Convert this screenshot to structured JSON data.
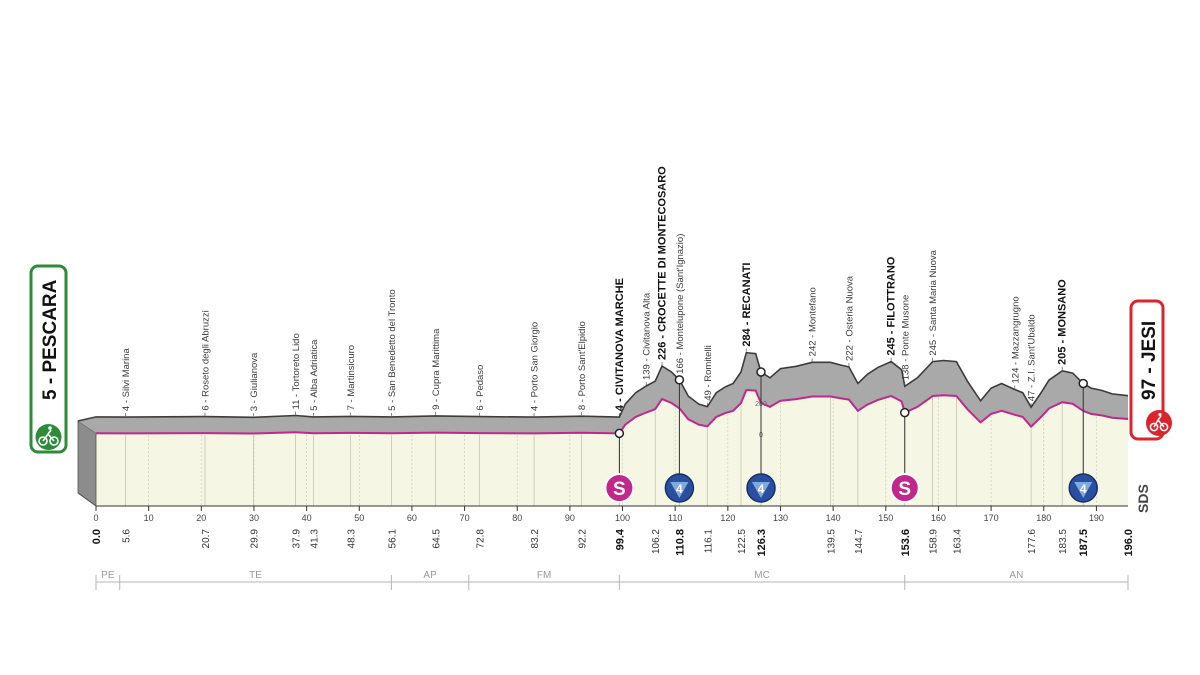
{
  "colors": {
    "start_badge": "#2e8b3a",
    "finish_badge": "#d9252b",
    "profile_fill": "#a9a9a9",
    "profile_side": "#8c8c8c",
    "base_fill": "#f5f6e3",
    "pink_line": "#c0288c",
    "sprint": "#c0288c",
    "kom": "#2b4fa0"
  },
  "start": {
    "label": "5 - PESCARA",
    "icon": "cyclist-icon"
  },
  "finish": {
    "label": "97 - JESI",
    "icon": "finish-flag-icon"
  },
  "credit": "SDS",
  "chart_data": {
    "type": "area",
    "title": "",
    "xlabel": "",
    "ylabel": "",
    "xlim": [
      0,
      196
    ],
    "x_ticks": [
      0,
      10,
      20,
      30,
      40,
      50,
      60,
      70,
      80,
      90,
      100,
      110,
      120,
      130,
      140,
      150,
      160,
      170,
      180,
      190
    ],
    "y_markers": [
      {
        "value": 0,
        "label": "0"
      },
      {
        "value": 200,
        "label": "200"
      }
    ],
    "profile": [
      [
        0,
        5
      ],
      [
        5.6,
        4
      ],
      [
        20.7,
        6
      ],
      [
        29.9,
        3
      ],
      [
        37.9,
        11
      ],
      [
        41.3,
        5
      ],
      [
        48.3,
        7
      ],
      [
        56.1,
        5
      ],
      [
        64.5,
        9
      ],
      [
        72.8,
        6
      ],
      [
        83.2,
        4
      ],
      [
        92.2,
        8
      ],
      [
        99.4,
        4
      ],
      [
        100.5,
        60
      ],
      [
        102.5,
        110
      ],
      [
        104.5,
        139
      ],
      [
        106.2,
        160
      ],
      [
        107.5,
        226
      ],
      [
        109.3,
        200
      ],
      [
        110.8,
        166
      ],
      [
        112.5,
        95
      ],
      [
        114.5,
        60
      ],
      [
        116.1,
        49
      ],
      [
        117.8,
        110
      ],
      [
        119.5,
        135
      ],
      [
        121,
        150
      ],
      [
        122.5,
        200
      ],
      [
        123.5,
        284
      ],
      [
        125.3,
        280
      ],
      [
        126.3,
        200
      ],
      [
        128,
        175
      ],
      [
        130,
        215
      ],
      [
        133,
        225
      ],
      [
        136,
        242
      ],
      [
        139.5,
        242
      ],
      [
        141.5,
        230
      ],
      [
        143,
        222
      ],
      [
        144.7,
        150
      ],
      [
        146.5,
        190
      ],
      [
        148.5,
        220
      ],
      [
        151,
        245
      ],
      [
        153,
        210
      ],
      [
        153.6,
        138
      ],
      [
        156,
        175
      ],
      [
        158.9,
        245
      ],
      [
        161,
        250
      ],
      [
        163.4,
        245
      ],
      [
        165.5,
        160
      ],
      [
        168,
        75
      ],
      [
        170,
        130
      ],
      [
        172,
        150
      ],
      [
        174.5,
        124
      ],
      [
        176,
        110
      ],
      [
        177.6,
        47
      ],
      [
        179.5,
        110
      ],
      [
        181,
        165
      ],
      [
        183.5,
        205
      ],
      [
        185.5,
        195
      ],
      [
        187.5,
        150
      ],
      [
        189,
        130
      ],
      [
        191,
        120
      ],
      [
        193,
        105
      ],
      [
        196,
        97
      ]
    ],
    "locations": [
      {
        "km": 5.6,
        "alt": 4,
        "label": "4 - Silvi Marina",
        "bold": false
      },
      {
        "km": 20.7,
        "alt": 6,
        "label": "6 - Roseto degli Abruzzi",
        "bold": false
      },
      {
        "km": 29.9,
        "alt": 3,
        "label": "3 - Giulianova",
        "bold": false
      },
      {
        "km": 37.9,
        "alt": 11,
        "label": "11 - Tortoreto Lido",
        "bold": false
      },
      {
        "km": 41.3,
        "alt": 5,
        "label": "5 - Alba Adriatica",
        "bold": false
      },
      {
        "km": 48.3,
        "alt": 7,
        "label": "7 - Martinsicuro",
        "bold": false
      },
      {
        "km": 56.1,
        "alt": 5,
        "label": "5 - San Benedetto del Tronto",
        "bold": false
      },
      {
        "km": 64.5,
        "alt": 9,
        "label": "9 - Cupra Marittima",
        "bold": false
      },
      {
        "km": 72.8,
        "alt": 6,
        "label": "6 - Pedaso",
        "bold": false
      },
      {
        "km": 83.2,
        "alt": 4,
        "label": "4 - Porto San Giorgio",
        "bold": false
      },
      {
        "km": 92.2,
        "alt": 8,
        "label": "8 - Porto Sant'Elpidio",
        "bold": false
      },
      {
        "km": 99.4,
        "alt": 4,
        "label": "4 - CIVITANOVA MARCHE",
        "bold": true
      },
      {
        "km": 104.5,
        "alt": 139,
        "label": "139 - Civitanova Alta",
        "bold": false
      },
      {
        "km": 107.5,
        "alt": 226,
        "label": "226 - CROCETTE DI MONTECOSARO",
        "bold": true
      },
      {
        "km": 110.8,
        "alt": 166,
        "label": "166 - Montelupone (Sant'Ignazio)",
        "bold": false
      },
      {
        "km": 116.1,
        "alt": 49,
        "label": "49 - Romitelli",
        "bold": false
      },
      {
        "km": 123.5,
        "alt": 284,
        "label": "284 - RECANATI",
        "bold": true
      },
      {
        "km": 136,
        "alt": 242,
        "label": "242 - Montefano",
        "bold": false
      },
      {
        "km": 143,
        "alt": 222,
        "label": "222 - Osteria Nuova",
        "bold": false
      },
      {
        "km": 151,
        "alt": 245,
        "label": "245 - FILOTTRANO",
        "bold": true
      },
      {
        "km": 153.6,
        "alt": 138,
        "label": "138 - Ponte Musone",
        "bold": false
      },
      {
        "km": 158.9,
        "alt": 245,
        "label": "245 - Santa Maria Nuova",
        "bold": false
      },
      {
        "km": 174.5,
        "alt": 124,
        "label": "124 - Mazzangrugno",
        "bold": false
      },
      {
        "km": 177.6,
        "alt": 47,
        "label": "47 - Z.I. Sant'Ubaldo",
        "bold": false
      },
      {
        "km": 183.5,
        "alt": 205,
        "label": "205 - MONSANO",
        "bold": true
      }
    ],
    "distance_labels": [
      {
        "km": 0,
        "text": "0.0",
        "bold": true
      },
      {
        "km": 5.6,
        "text": "5.6",
        "bold": false
      },
      {
        "km": 20.7,
        "text": "20.7",
        "bold": false
      },
      {
        "km": 29.9,
        "text": "29.9",
        "bold": false
      },
      {
        "km": 37.9,
        "text": "37.9",
        "bold": false
      },
      {
        "km": 41.3,
        "text": "41.3",
        "bold": false
      },
      {
        "km": 48.3,
        "text": "48.3",
        "bold": false
      },
      {
        "km": 56.1,
        "text": "56.1",
        "bold": false
      },
      {
        "km": 64.5,
        "text": "64.5",
        "bold": false
      },
      {
        "km": 72.8,
        "text": "72.8",
        "bold": false
      },
      {
        "km": 83.2,
        "text": "83.2",
        "bold": false
      },
      {
        "km": 92.2,
        "text": "92.2",
        "bold": false
      },
      {
        "km": 99.4,
        "text": "99.4",
        "bold": true
      },
      {
        "km": 106.2,
        "text": "106.2",
        "bold": false
      },
      {
        "km": 110.8,
        "text": "110.8",
        "bold": true
      },
      {
        "km": 116.1,
        "text": "116.1",
        "bold": false
      },
      {
        "km": 122.5,
        "text": "122.5",
        "bold": false
      },
      {
        "km": 126.3,
        "text": "126.3",
        "bold": true
      },
      {
        "km": 139.5,
        "text": "139.5",
        "bold": false
      },
      {
        "km": 144.7,
        "text": "144.7",
        "bold": false
      },
      {
        "km": 153.6,
        "text": "153.6",
        "bold": true
      },
      {
        "km": 158.9,
        "text": "158.9",
        "bold": false
      },
      {
        "km": 163.4,
        "text": "163.4",
        "bold": false
      },
      {
        "km": 177.6,
        "text": "177.6",
        "bold": false
      },
      {
        "km": 183.5,
        "text": "183.5",
        "bold": false
      },
      {
        "km": 187.5,
        "text": "187.5",
        "bold": true
      },
      {
        "km": 196.0,
        "text": "196.0",
        "bold": true
      }
    ],
    "regions": [
      {
        "label": "PE",
        "from": 0,
        "to": 4.5
      },
      {
        "label": "TE",
        "from": 4.5,
        "to": 56.1
      },
      {
        "label": "AP",
        "from": 56.1,
        "to": 70.8
      },
      {
        "label": "FM",
        "from": 70.8,
        "to": 99.4
      },
      {
        "label": "MC",
        "from": 99.4,
        "to": 153.6
      },
      {
        "label": "AN",
        "from": 153.6,
        "to": 196
      }
    ],
    "markers": [
      {
        "type": "sprint",
        "km": 99.4,
        "label": "S"
      },
      {
        "type": "kom",
        "km": 110.8,
        "label": "4"
      },
      {
        "type": "kom",
        "km": 126.3,
        "label": "4"
      },
      {
        "type": "sprint",
        "km": 153.6,
        "label": "S"
      },
      {
        "type": "kom",
        "km": 187.5,
        "label": "4"
      }
    ]
  }
}
